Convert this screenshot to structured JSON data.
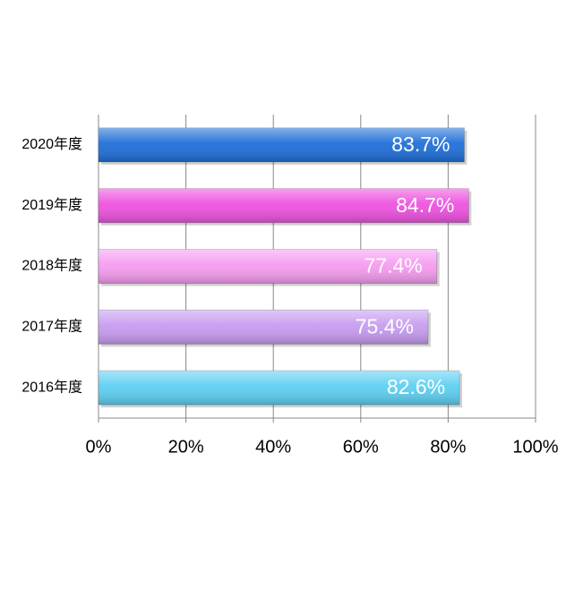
{
  "chart_data": {
    "type": "barh",
    "categories": [
      "2020年度",
      "2019年度",
      "2018年度",
      "2017年度",
      "2016年度"
    ],
    "values": [
      83.7,
      84.7,
      77.4,
      75.4,
      82.6
    ],
    "value_labels": [
      "83.7%",
      "84.7%",
      "77.4%",
      "75.4%",
      "82.6%"
    ],
    "colors": [
      "#1f6fd8",
      "#ee52e0",
      "#f69cf0",
      "#c79cf0",
      "#5ed0f2"
    ],
    "xlim": [
      0,
      100
    ],
    "xticks": [
      {
        "value": 0,
        "label": "0%"
      },
      {
        "value": 20,
        "label": "20%"
      },
      {
        "value": 40,
        "label": "40%"
      },
      {
        "value": 60,
        "label": "60%"
      },
      {
        "value": 80,
        "label": "80%"
      },
      {
        "value": 100,
        "label": "100%"
      }
    ],
    "grid": true
  }
}
